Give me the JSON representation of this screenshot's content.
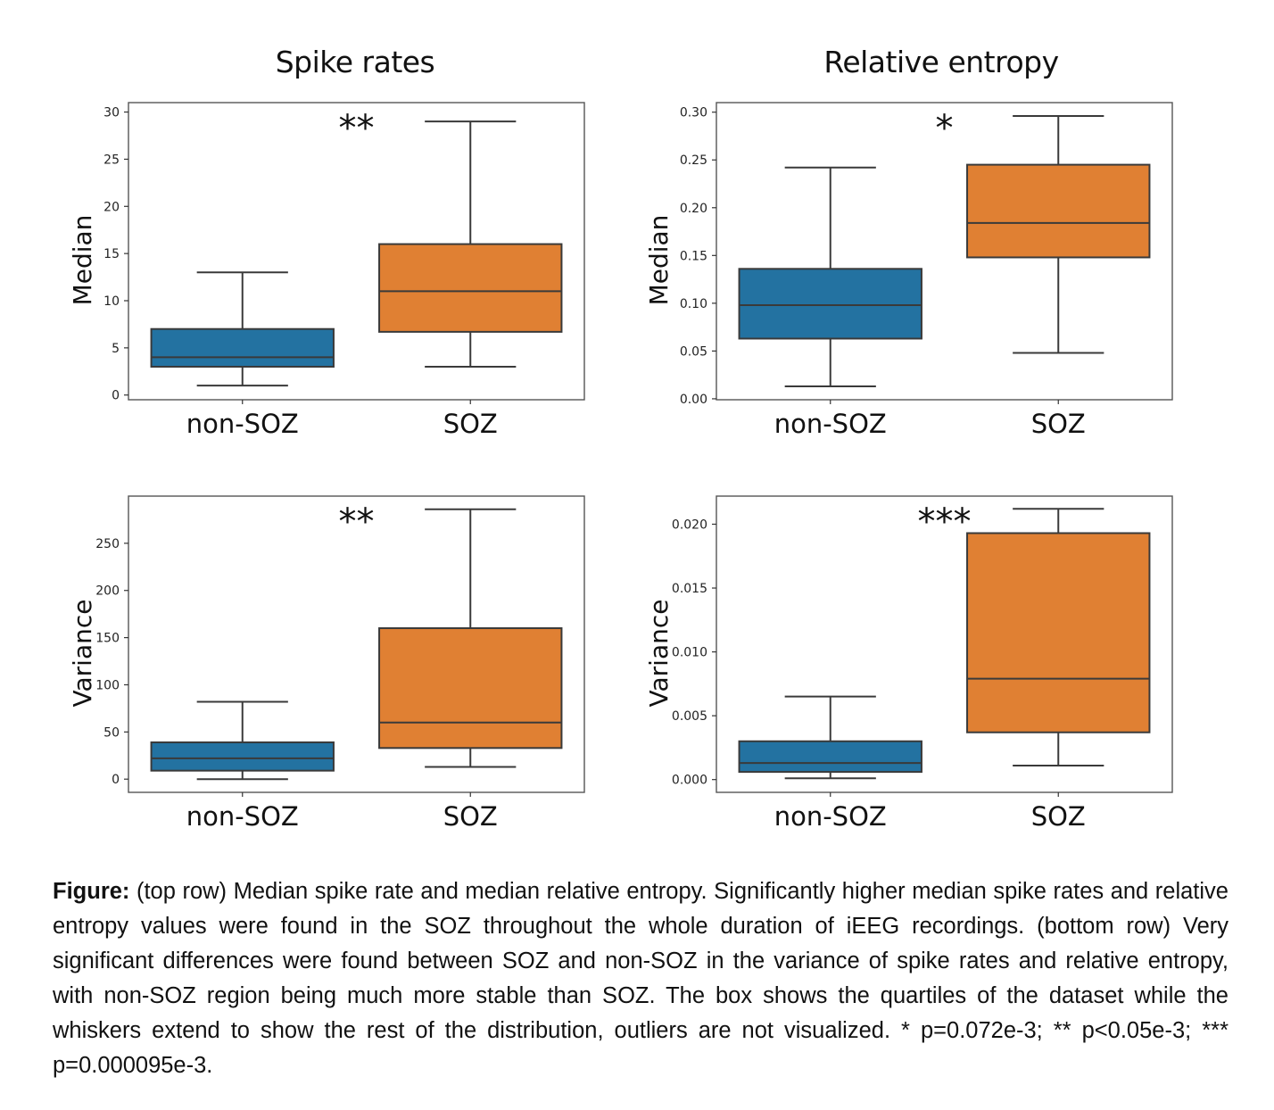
{
  "columns": {
    "left_title": "Spike rates",
    "right_title": "Relative entropy"
  },
  "colors": {
    "non_soz": "#2372A1",
    "soz": "#E08033",
    "line": "#3a3a3a"
  },
  "chart_data": [
    {
      "type": "box",
      "panel": "top-left",
      "title": "Spike rates",
      "ylabel": "Median",
      "xlabel": "",
      "categories": [
        "non-SOZ",
        "SOZ"
      ],
      "ylim": [
        -0.5,
        31
      ],
      "yticks": [
        0,
        5,
        10,
        15,
        20,
        25,
        30
      ],
      "ytick_labels": [
        "0",
        "5",
        "10",
        "15",
        "20",
        "25",
        "30"
      ],
      "significance": "**",
      "boxes": [
        {
          "category": "non-SOZ",
          "min": 1,
          "q1": 3,
          "median": 4,
          "q3": 7,
          "max": 13
        },
        {
          "category": "SOZ",
          "min": 3,
          "q1": 6.7,
          "median": 11,
          "q3": 16,
          "max": 29
        }
      ]
    },
    {
      "type": "box",
      "panel": "top-right",
      "title": "Relative entropy",
      "ylabel": "Median",
      "xlabel": "",
      "categories": [
        "non-SOZ",
        "SOZ"
      ],
      "ylim": [
        -0.001,
        0.31
      ],
      "yticks": [
        0.0,
        0.05,
        0.1,
        0.15,
        0.2,
        0.25,
        0.3
      ],
      "ytick_labels": [
        "0.00",
        "0.05",
        "0.10",
        "0.15",
        "0.20",
        "0.25",
        "0.30"
      ],
      "significance": "*",
      "boxes": [
        {
          "category": "non-SOZ",
          "min": 0.013,
          "q1": 0.063,
          "median": 0.098,
          "q3": 0.136,
          "max": 0.242
        },
        {
          "category": "SOZ",
          "min": 0.048,
          "q1": 0.148,
          "median": 0.184,
          "q3": 0.245,
          "max": 0.296
        }
      ]
    },
    {
      "type": "box",
      "panel": "bottom-left",
      "title": "Spike rates",
      "ylabel": "Variance",
      "xlabel": "",
      "categories": [
        "non-SOZ",
        "SOZ"
      ],
      "ylim": [
        -14,
        300
      ],
      "yticks": [
        0,
        50,
        100,
        150,
        200,
        250
      ],
      "ytick_labels": [
        "0",
        "50",
        "100",
        "150",
        "200",
        "250"
      ],
      "significance": "**",
      "boxes": [
        {
          "category": "non-SOZ",
          "min": 0,
          "q1": 9,
          "median": 22,
          "q3": 39,
          "max": 82
        },
        {
          "category": "SOZ",
          "min": 13,
          "q1": 33,
          "median": 60,
          "q3": 160,
          "max": 286
        }
      ]
    },
    {
      "type": "box",
      "panel": "bottom-right",
      "title": "Relative entropy",
      "ylabel": "Variance",
      "xlabel": "",
      "categories": [
        "non-SOZ",
        "SOZ"
      ],
      "ylim": [
        -0.001,
        0.0222
      ],
      "yticks": [
        0.0,
        0.005,
        0.01,
        0.015,
        0.02
      ],
      "ytick_labels": [
        "0.000",
        "0.005",
        "0.010",
        "0.015",
        "0.020"
      ],
      "significance": "***",
      "boxes": [
        {
          "category": "non-SOZ",
          "min": 0.0001,
          "q1": 0.0006,
          "median": 0.0013,
          "q3": 0.003,
          "max": 0.0065
        },
        {
          "category": "SOZ",
          "min": 0.0011,
          "q1": 0.0037,
          "median": 0.0079,
          "q3": 0.0193,
          "max": 0.0212
        }
      ]
    }
  ],
  "caption": {
    "label": "Figure:",
    "text": " (top row) Median spike rate and median relative entropy. Significantly higher median spike rates and relative entropy values were found in the SOZ throughout the whole duration of iEEG recordings. (bottom row) Very significant differences were found between SOZ and non-SOZ in the variance of spike rates and relative entropy, with non-SOZ region being much more stable than SOZ. The box shows the quartiles of the dataset while the whiskers extend to show the rest of the distribution, outliers are not visualized. * p=0.072e-3; ** p<0.05e-3; *** p=0.000095e-3."
  }
}
